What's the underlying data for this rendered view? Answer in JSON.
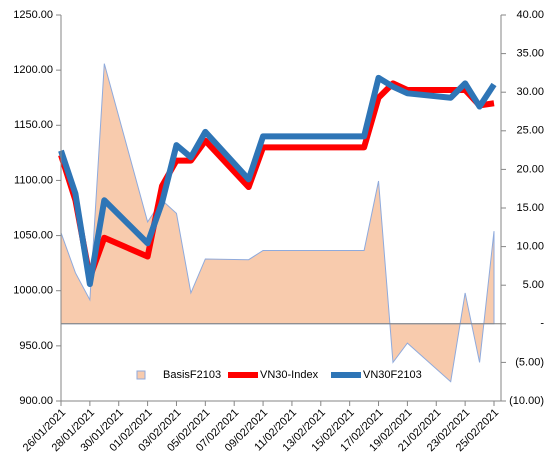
{
  "chart_data": {
    "type": "combo",
    "x": [
      "26/01/2021",
      "27/01/2021",
      "28/01/2021",
      "29/01/2021",
      "01/02/2021",
      "02/02/2021",
      "03/02/2021",
      "04/02/2021",
      "05/02/2021",
      "08/02/2021",
      "09/02/2021",
      "16/02/2021",
      "17/02/2021",
      "18/02/2021",
      "19/02/2021",
      "22/02/2021",
      "23/02/2021",
      "24/02/2021",
      "25/02/2021"
    ],
    "xlim": [
      "26/01/2021",
      "25/02/2021"
    ],
    "xticks": [
      "26/01/2021",
      "28/01/2021",
      "30/01/2021",
      "01/02/2021",
      "03/02/2021",
      "05/02/2021",
      "07/02/2021",
      "09/02/2021",
      "11/02/2021",
      "13/02/2021",
      "15/02/2021",
      "17/02/2021",
      "19/02/2021",
      "21/02/2021",
      "23/02/2021",
      "25/02/2021"
    ],
    "ylim": [
      900,
      1250
    ],
    "yticks": [
      {
        "value": 900,
        "label": "900.00"
      },
      {
        "value": 950,
        "label": "950.00"
      },
      {
        "value": 1000,
        "label": "1000.00"
      },
      {
        "value": 1050,
        "label": "1050.00"
      },
      {
        "value": 1100,
        "label": "1100.00"
      },
      {
        "value": 1150,
        "label": "1150.00"
      },
      {
        "value": 1200,
        "label": "1200.00"
      },
      {
        "value": 1250,
        "label": "1250.00"
      }
    ],
    "y2lim": [
      -10,
      40
    ],
    "y2ticks": [
      {
        "value": -10,
        "label": "(10.00)"
      },
      {
        "value": -5,
        "label": "(5.00)"
      },
      {
        "value": 0,
        "label": "-"
      },
      {
        "value": 5,
        "label": "5.00"
      },
      {
        "value": 10,
        "label": "10.00"
      },
      {
        "value": 15,
        "label": "15.00"
      },
      {
        "value": 20,
        "label": "20.00"
      },
      {
        "value": 25,
        "label": "25.00"
      },
      {
        "value": 30,
        "label": "30.00"
      },
      {
        "value": 35,
        "label": "35.00"
      },
      {
        "value": 40,
        "label": "40.00"
      }
    ],
    "legend": "bottom",
    "series": [
      {
        "name": "BasisF2103",
        "type": "area",
        "axis": "y2",
        "color": "#f8cbad",
        "values": [
          11.8,
          6.6,
          3.1,
          33.7,
          13.2,
          16.0,
          14.3,
          4.0,
          8.4,
          8.3,
          9.5,
          9.5,
          18.5,
          -5.0,
          -2.5,
          -7.5,
          4.0,
          -5.0,
          12.0
        ]
      },
      {
        "name": "VN30-Index",
        "type": "line",
        "color": "#ff0000",
        "values": [
          1123,
          1082,
          1012,
          1048,
          1031,
          1095,
          1118,
          1118,
          1136,
          1094,
          1130,
          1130,
          1175,
          1188,
          1182,
          1182,
          1182,
          1168,
          1170
        ]
      },
      {
        "name": "VN30F2103",
        "type": "line",
        "color": "#2e75b6",
        "values": [
          1127,
          1088,
          1006,
          1082,
          1043,
          1080,
          1132,
          1121,
          1144,
          1101,
          1140,
          1140,
          1193,
          1185,
          1179,
          1175,
          1188,
          1167,
          1187
        ]
      }
    ]
  }
}
